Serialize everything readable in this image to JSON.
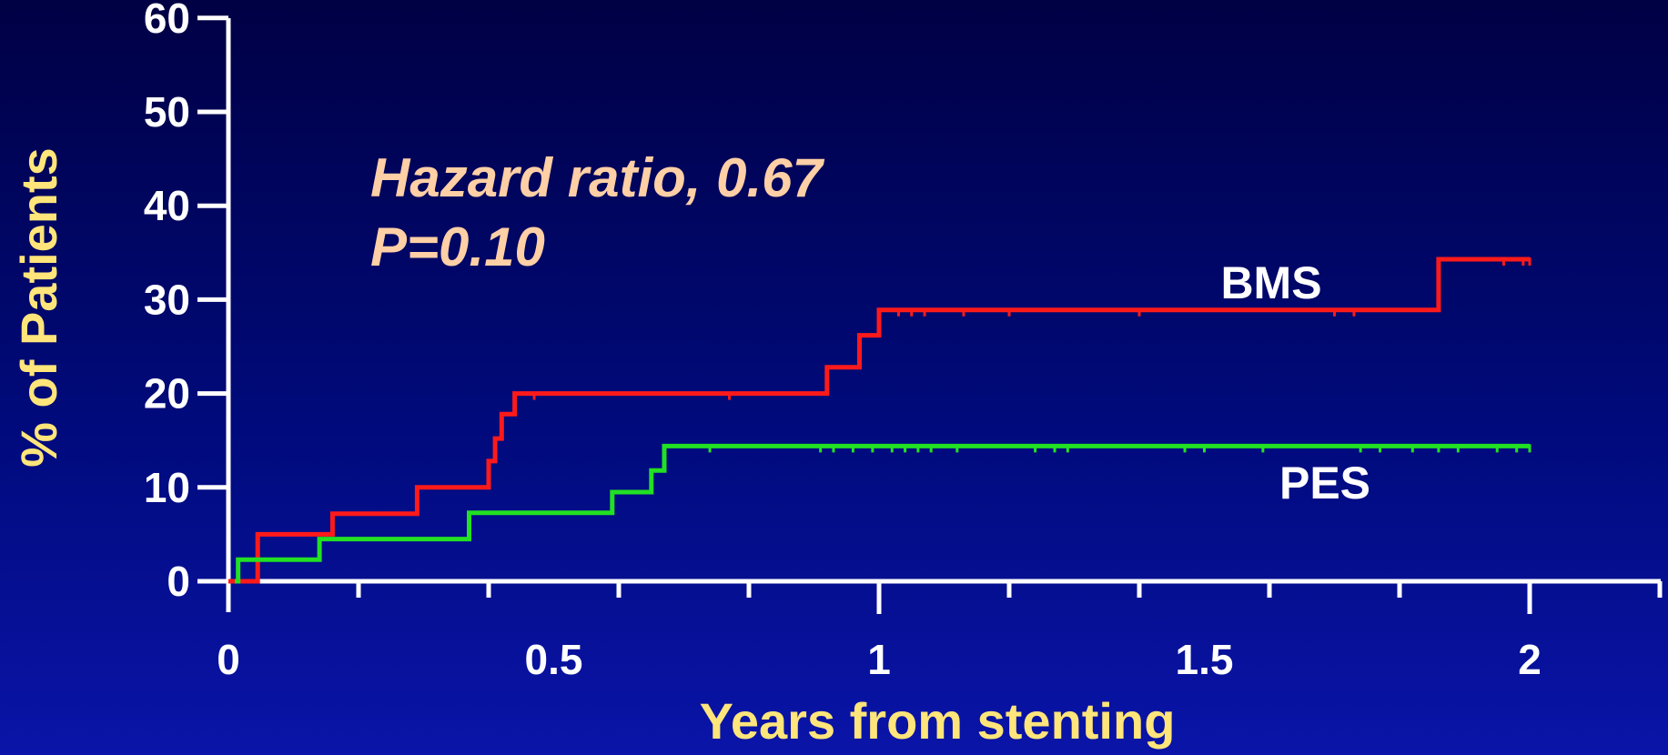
{
  "chart_data": {
    "type": "line",
    "xlabel": "Years from stenting",
    "ylabel": "% of Patients",
    "xlim": [
      0,
      2.2
    ],
    "ylim": [
      0,
      60
    ],
    "x_ticks": [
      "0",
      "0.5",
      "1",
      "1.5",
      "2"
    ],
    "y_ticks": [
      "0",
      "10",
      "20",
      "30",
      "40",
      "50",
      "60"
    ],
    "annotations": [
      "Hazard ratio, 0.67",
      "P=0.10"
    ],
    "series": [
      {
        "name": "BMS",
        "color": "#ff1a1a",
        "points": [
          [
            0,
            0
          ],
          [
            0.045,
            0
          ],
          [
            0.045,
            5
          ],
          [
            0.16,
            5
          ],
          [
            0.16,
            7.2
          ],
          [
            0.29,
            7.2
          ],
          [
            0.29,
            10
          ],
          [
            0.4,
            10
          ],
          [
            0.4,
            12.8
          ],
          [
            0.41,
            12.8
          ],
          [
            0.41,
            15.2
          ],
          [
            0.42,
            15.2
          ],
          [
            0.42,
            17.8
          ],
          [
            0.44,
            17.8
          ],
          [
            0.44,
            20
          ],
          [
            0.92,
            20
          ],
          [
            0.92,
            22.8
          ],
          [
            0.97,
            22.8
          ],
          [
            0.97,
            26.2
          ],
          [
            1.0,
            26.2
          ],
          [
            1.0,
            28.9
          ],
          [
            1.86,
            28.9
          ],
          [
            1.86,
            34.3
          ],
          [
            2.0,
            34.3
          ]
        ],
        "censor_x": [
          0.47,
          0.77,
          1.03,
          1.05,
          1.07,
          1.13,
          1.2,
          1.4,
          1.7,
          1.73,
          1.96,
          1.99,
          2.0
        ]
      },
      {
        "name": "PES",
        "color": "#22e022",
        "points": [
          [
            0.01,
            0
          ],
          [
            0.015,
            0
          ],
          [
            0.015,
            2.3
          ],
          [
            0.14,
            2.3
          ],
          [
            0.14,
            4.5
          ],
          [
            0.37,
            4.5
          ],
          [
            0.37,
            7.3
          ],
          [
            0.59,
            7.3
          ],
          [
            0.59,
            9.5
          ],
          [
            0.65,
            9.5
          ],
          [
            0.65,
            11.8
          ],
          [
            0.67,
            11.8
          ],
          [
            0.67,
            14.4
          ],
          [
            2.0,
            14.4
          ]
        ],
        "censor_x": [
          0.74,
          0.91,
          0.93,
          0.96,
          0.99,
          1.02,
          1.04,
          1.06,
          1.08,
          1.12,
          1.24,
          1.27,
          1.29,
          1.47,
          1.5,
          1.59,
          1.74,
          1.77,
          1.82,
          1.86,
          1.89,
          1.95,
          1.98,
          2.0
        ]
      }
    ]
  }
}
